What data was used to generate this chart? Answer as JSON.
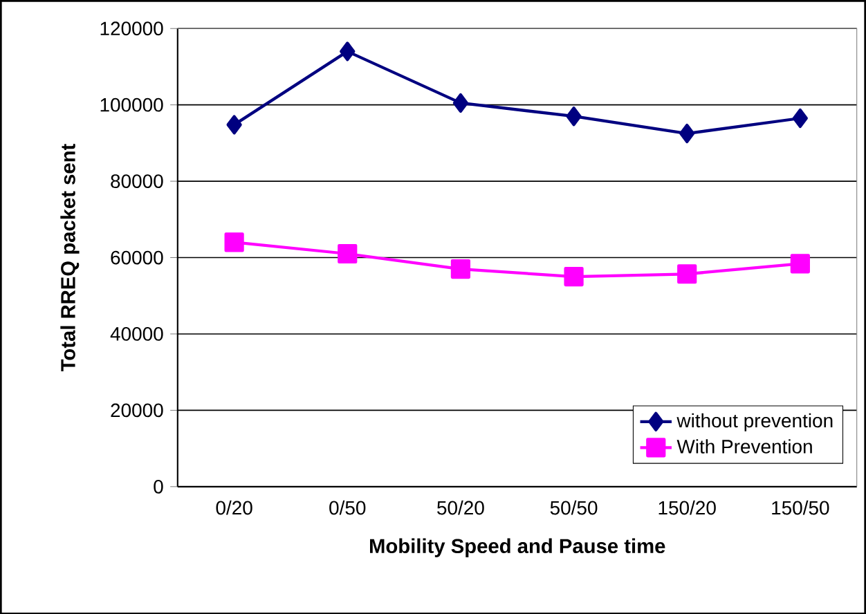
{
  "chart_data": {
    "type": "line",
    "xlabel": "Mobility Speed and Pause time",
    "ylabel": "Total RREQ packet sent",
    "categories": [
      "0/20",
      "0/50",
      "50/20",
      "50/50",
      "150/20",
      "150/50"
    ],
    "series": [
      {
        "name": "without prevention",
        "color": "#000080",
        "marker": "diamond",
        "values": [
          94800,
          114000,
          100500,
          97000,
          92500,
          96500
        ]
      },
      {
        "name": "With Prevention",
        "color": "#ff00ff",
        "marker": "square",
        "values": [
          64000,
          61000,
          57000,
          55000,
          55700,
          58400
        ]
      }
    ],
    "ylim": [
      0,
      120000
    ],
    "yticks": [
      0,
      20000,
      40000,
      60000,
      80000,
      100000,
      120000
    ],
    "grid": "y",
    "legend": "bottom right",
    "line_style": "solid"
  }
}
